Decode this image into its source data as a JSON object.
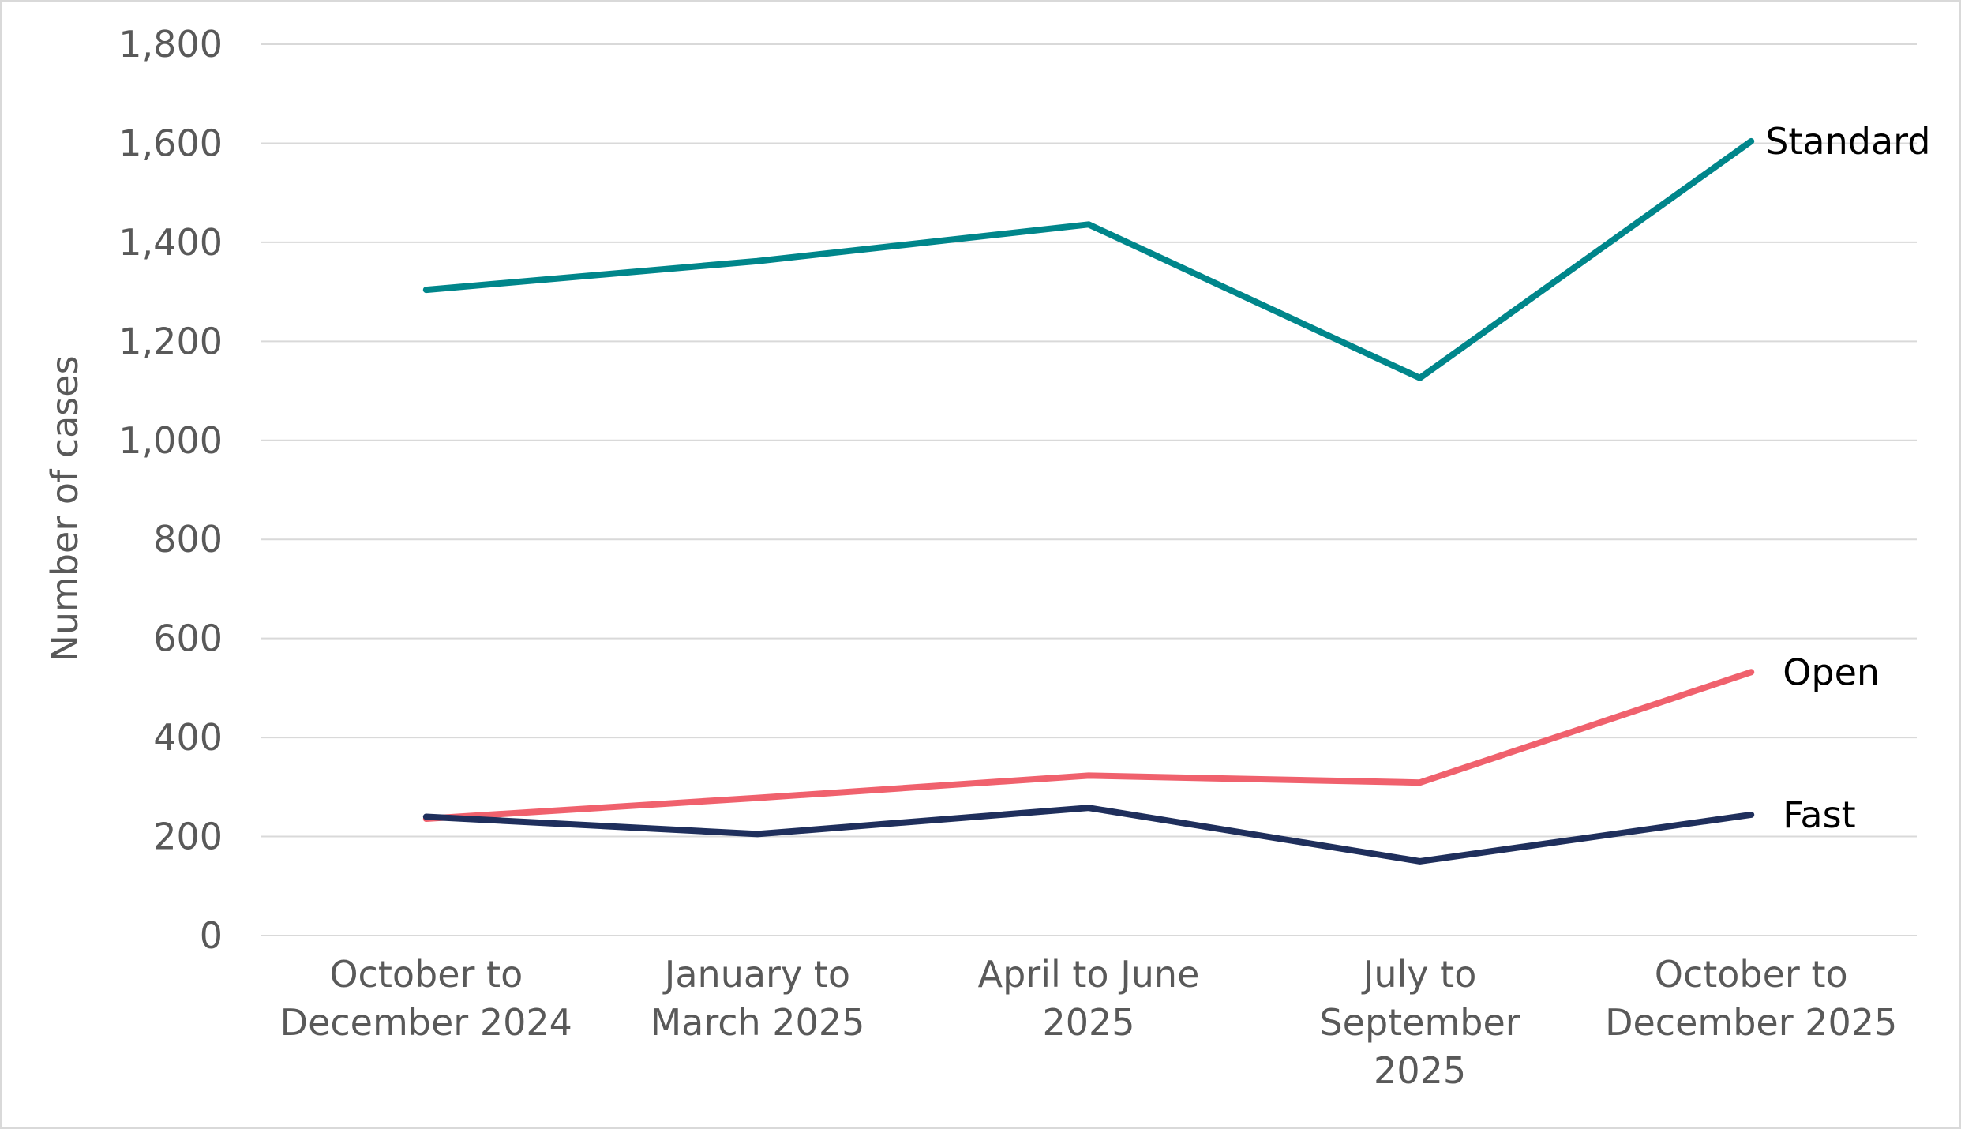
{
  "chart_data": {
    "type": "line",
    "title": "",
    "xlabel": "",
    "ylabel": "Number of cases",
    "ylim": [
      0,
      1800
    ],
    "yticks": [
      "0",
      "200",
      "400",
      "600",
      "800",
      "1,000",
      "1,200",
      "1,400",
      "1,600",
      "1,800"
    ],
    "ytick_values": [
      0,
      200,
      400,
      600,
      800,
      1000,
      1200,
      1400,
      1600,
      1800
    ],
    "grid": true,
    "legend": "none (series labelled at line ends)",
    "categories": [
      [
        "October to",
        "December 2024"
      ],
      [
        "January to",
        "March 2025"
      ],
      [
        "April to June",
        "2025"
      ],
      [
        "July to",
        "September",
        "2025"
      ],
      [
        "October to",
        "December 2025"
      ]
    ],
    "series": [
      {
        "name": "Standard",
        "color": "#00868b",
        "values": [
          1304,
          1362,
          1436,
          1126,
          1604
        ]
      },
      {
        "name": "Open",
        "color": "#f0616d",
        "values": [
          236,
          278,
          323,
          309,
          532
        ]
      },
      {
        "name": "Fast",
        "color": "#1f2f5c",
        "values": [
          240,
          205,
          258,
          150,
          244
        ]
      }
    ]
  }
}
